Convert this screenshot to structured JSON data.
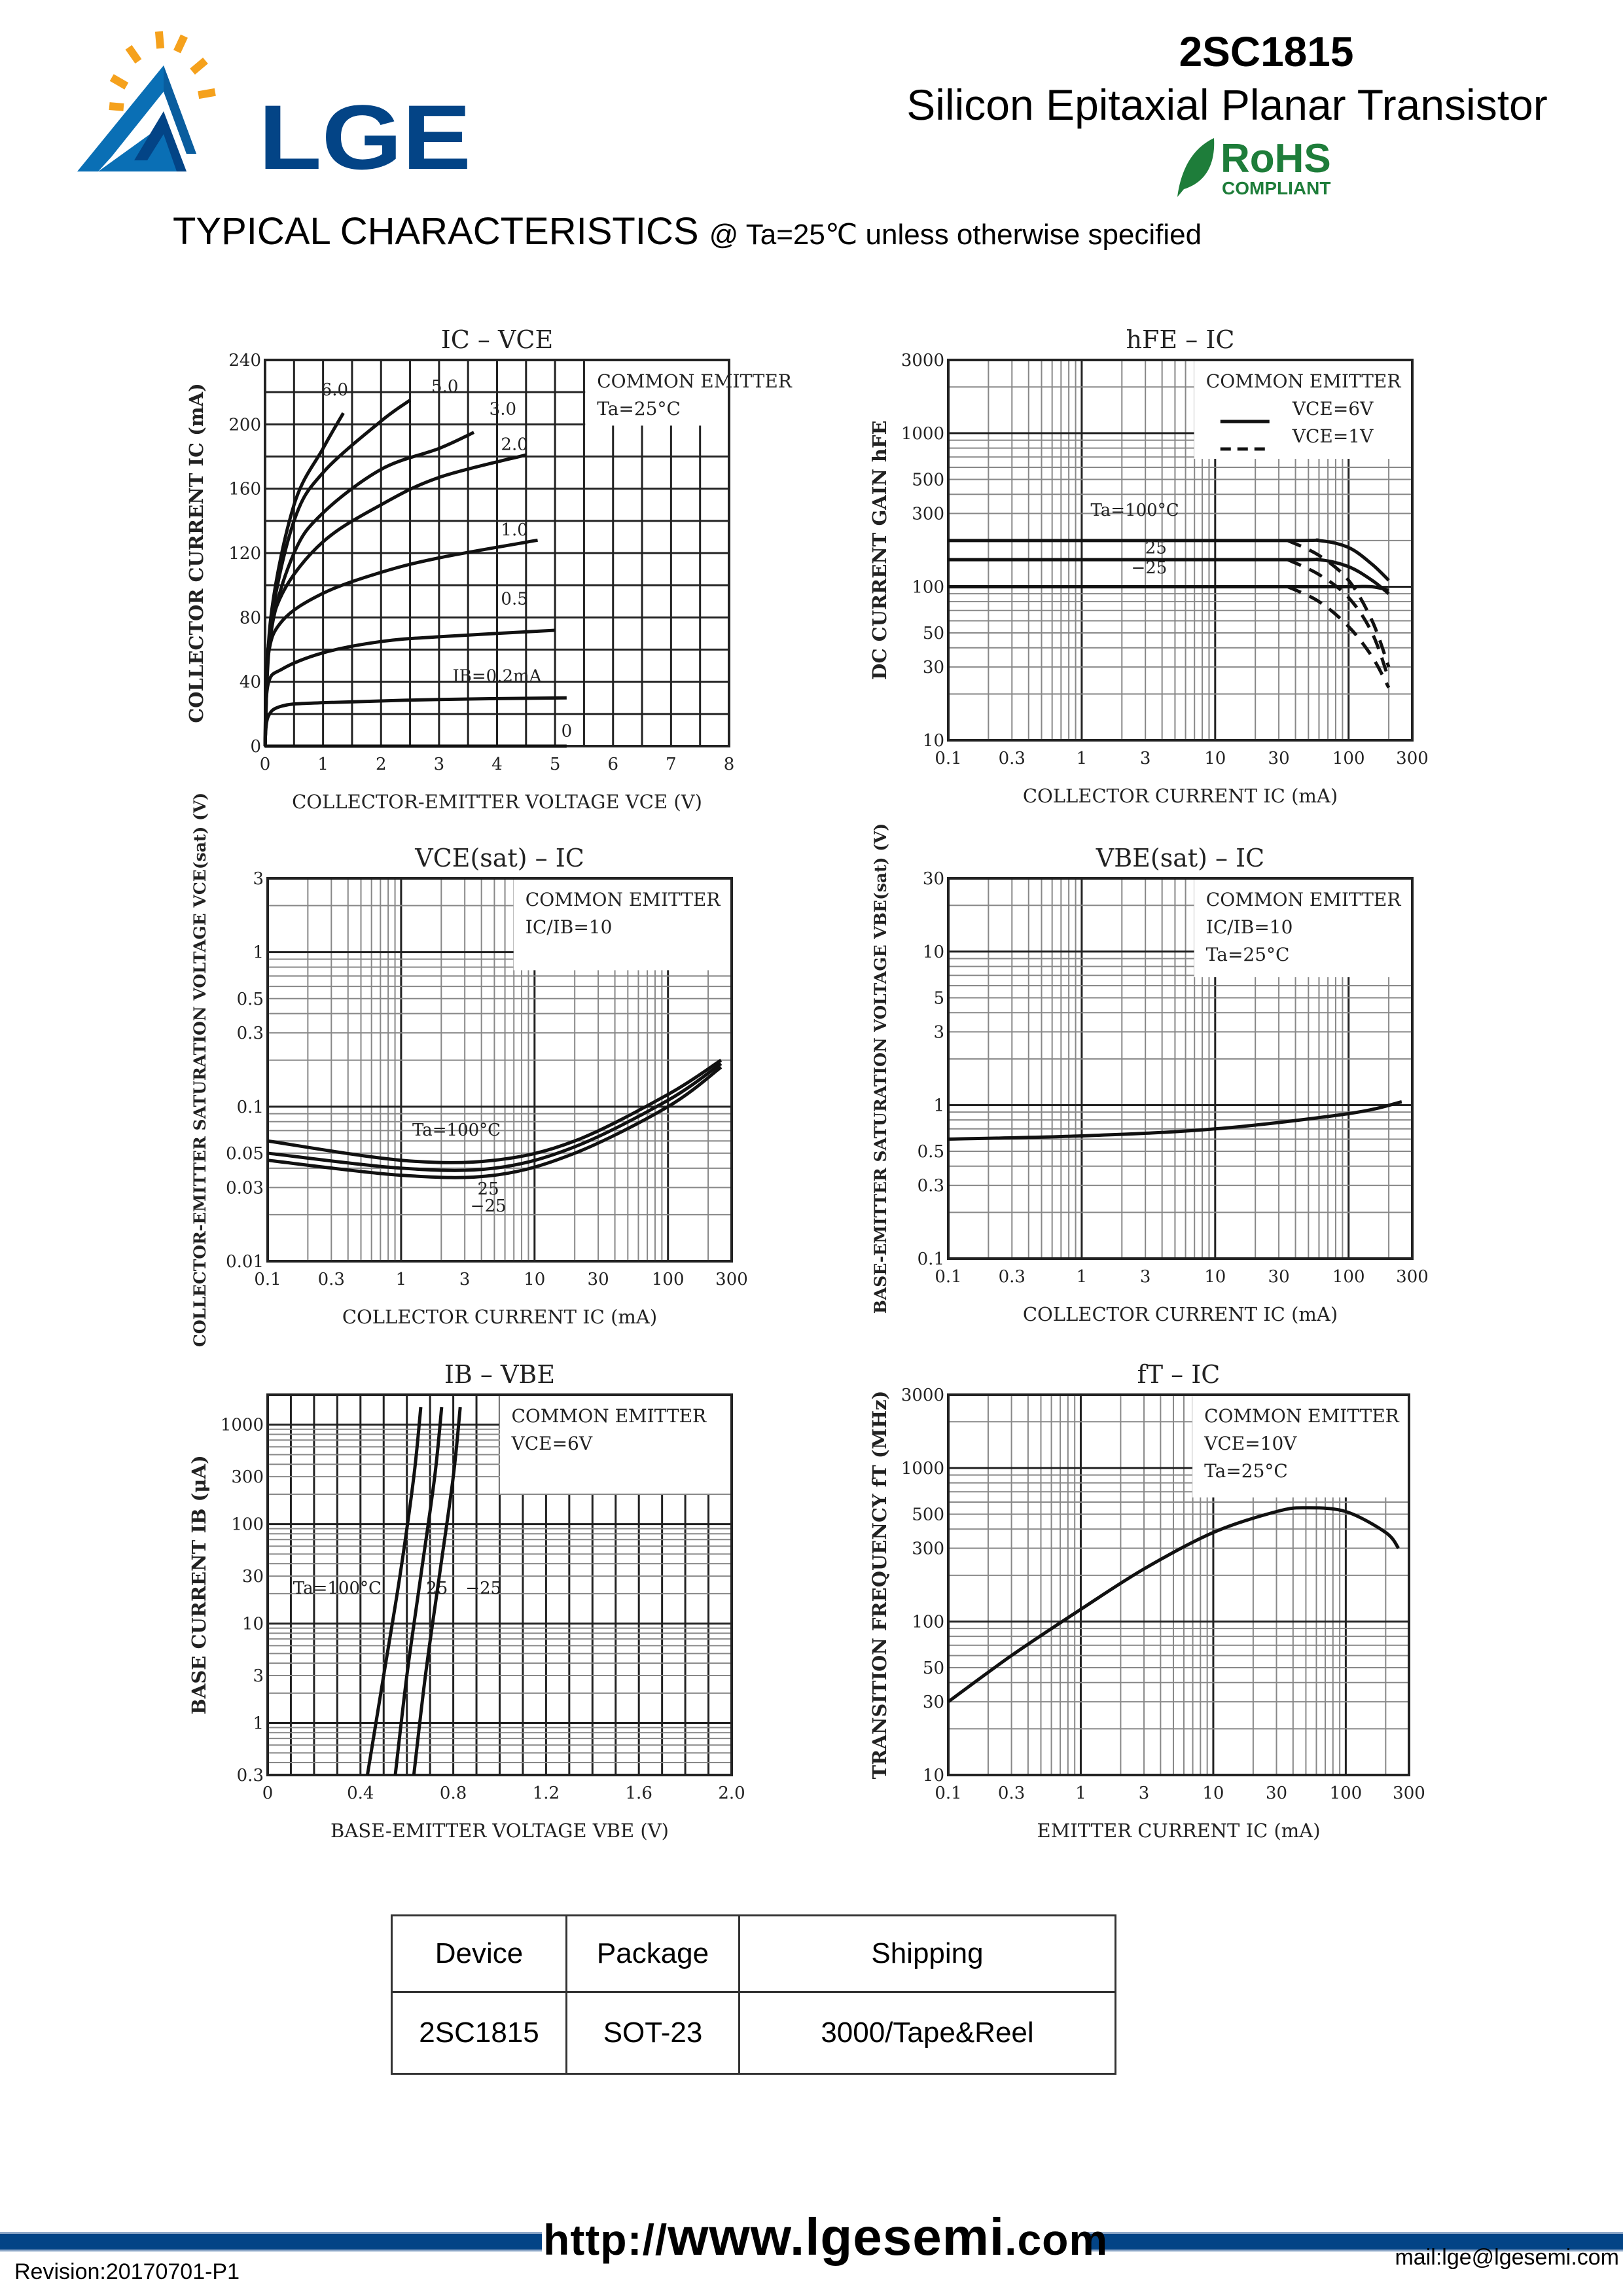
{
  "header": {
    "brand": "LGE",
    "part_number": "2SC1815",
    "subtitle": "Silicon Epitaxial Planar Transistor",
    "rohs": "RoHS",
    "rohs_sub": "COMPLIANT",
    "section_title": "TYPICAL CHARACTERISTICS",
    "section_condition": "@ Ta=25℃ unless otherwise specified"
  },
  "chart_data": [
    {
      "type": "line",
      "title": "IC – VCE",
      "xlabel": "COLLECTOR-EMITTER VOLTAGE   VCE   (V)",
      "ylabel": "COLLECTOR CURRENT   IC   (mA)",
      "xscale": "linear",
      "yscale": "linear",
      "xlim": [
        0,
        8
      ],
      "ylim": [
        0,
        240
      ],
      "xticks": [
        0,
        1,
        2,
        3,
        4,
        5,
        6,
        7,
        8
      ],
      "xtick_labels": [
        "0",
        "1",
        "2",
        "3",
        "4",
        "5",
        "6",
        "7",
        "8"
      ],
      "yticks": [
        0,
        40,
        80,
        120,
        160,
        200,
        240
      ],
      "ytick_labels": [
        "0",
        "40",
        "80",
        "120",
        "160",
        "200",
        "240"
      ],
      "legend": [
        "COMMON EMITTER",
        "Ta=25°C"
      ],
      "legend_placement": "top-right",
      "series": [
        {
          "name": "0",
          "label": "0",
          "style": "solid",
          "x": [
            0,
            5.2
          ],
          "y": [
            0,
            0
          ]
        },
        {
          "name": "IB=0.2mA",
          "label": "IB=0.2mA",
          "style": "solid",
          "x": [
            0,
            0.05,
            0.3,
            1,
            3,
            5.2
          ],
          "y": [
            0,
            18,
            25,
            27,
            29,
            30
          ]
        },
        {
          "name": "0.5",
          "label": "0.5",
          "style": "solid",
          "x": [
            0,
            0.05,
            0.3,
            1,
            2,
            3,
            5
          ],
          "y": [
            0,
            38,
            48,
            58,
            65,
            68,
            72
          ]
        },
        {
          "name": "1.0",
          "label": "1.0",
          "style": "solid",
          "x": [
            0,
            0.05,
            0.3,
            1,
            2,
            3,
            4.7
          ],
          "y": [
            0,
            55,
            78,
            95,
            108,
            117,
            128
          ]
        },
        {
          "name": "2.0",
          "label": "2.0",
          "style": "solid",
          "x": [
            0,
            0.05,
            0.3,
            1,
            2,
            3,
            4.5
          ],
          "y": [
            0,
            60,
            95,
            127,
            150,
            167,
            181
          ]
        },
        {
          "name": "3.0",
          "label": "3.0",
          "style": "solid",
          "x": [
            0,
            0.1,
            0.5,
            1,
            2,
            3,
            3.6
          ],
          "y": [
            0,
            70,
            120,
            145,
            172,
            185,
            195
          ]
        },
        {
          "name": "5.0",
          "label": "5.0",
          "style": "solid",
          "x": [
            0,
            0.1,
            0.5,
            1,
            2,
            2.5
          ],
          "y": [
            0,
            75,
            140,
            170,
            202,
            215
          ]
        },
        {
          "name": "6.0",
          "label": "6.0",
          "style": "solid",
          "x": [
            0,
            0.1,
            0.5,
            1,
            1.35
          ],
          "y": [
            0,
            80,
            150,
            185,
            207
          ]
        }
      ]
    },
    {
      "type": "line",
      "title": "hFE – IC",
      "xlabel": "COLLECTOR CURRENT   IC   (mA)",
      "ylabel": "DC CURRENT GAIN   hFE",
      "xscale": "log",
      "yscale": "log",
      "xlim": [
        0.1,
        300
      ],
      "ylim": [
        10,
        3000
      ],
      "xticks": [
        0.1,
        0.3,
        1,
        3,
        10,
        30,
        100,
        300
      ],
      "xtick_labels": [
        "0.1",
        "0.3",
        "1",
        "3",
        "10",
        "30",
        "100",
        "300"
      ],
      "yticks": [
        10,
        30,
        50,
        100,
        300,
        500,
        1000,
        3000
      ],
      "ytick_labels": [
        "10",
        "30",
        "50",
        "100",
        "300",
        "500",
        "1000",
        "3000"
      ],
      "legend": [
        "COMMON EMITTER",
        "VCE=6V",
        "VCE=1V"
      ],
      "legend_placement": "top-right",
      "series": [
        {
          "name": "Ta=100°C VCE=6V",
          "label": "Ta=100°C",
          "style": "solid",
          "x": [
            0.1,
            30,
            60,
            100,
            150,
            200
          ],
          "y": [
            200,
            200,
            200,
            180,
            140,
            110
          ]
        },
        {
          "name": "Ta=25°C VCE=6V",
          "label": "25",
          "style": "solid",
          "x": [
            0.1,
            30,
            60,
            100,
            150,
            200
          ],
          "y": [
            150,
            150,
            150,
            135,
            110,
            90
          ]
        },
        {
          "name": "Ta=-25°C VCE=6V",
          "label": "−25",
          "style": "solid",
          "x": [
            0.1,
            30,
            100,
            150,
            200
          ],
          "y": [
            100,
            100,
            100,
            100,
            95
          ]
        },
        {
          "name": "Ta=100°C VCE=1V",
          "style": "dashed",
          "x": [
            35,
            60,
            100,
            150,
            200
          ],
          "y": [
            200,
            160,
            110,
            60,
            30
          ]
        },
        {
          "name": "Ta=25°C VCE=1V",
          "style": "dashed",
          "x": [
            35,
            60,
            100,
            150,
            200
          ],
          "y": [
            150,
            120,
            85,
            50,
            25
          ]
        },
        {
          "name": "Ta=-25°C VCE=1V",
          "style": "dashed",
          "x": [
            35,
            60,
            100,
            150,
            200
          ],
          "y": [
            100,
            80,
            55,
            35,
            22
          ]
        }
      ]
    },
    {
      "type": "line",
      "title": "VCE(sat) – IC",
      "xlabel": "COLLECTOR CURRENT   IC   (mA)",
      "ylabel": "COLLECTOR-EMITTER SATURATION VOLTAGE   VCE(sat)   (V)",
      "xscale": "log",
      "yscale": "log",
      "xlim": [
        0.1,
        300
      ],
      "ylim": [
        0.01,
        3
      ],
      "xticks": [
        0.1,
        0.3,
        1,
        3,
        10,
        30,
        100,
        300
      ],
      "xtick_labels": [
        "0.1",
        "0.3",
        "1",
        "3",
        "10",
        "30",
        "100",
        "300"
      ],
      "yticks": [
        0.01,
        0.03,
        0.05,
        0.1,
        0.3,
        0.5,
        1,
        3
      ],
      "ytick_labels": [
        "0.01",
        "0.03",
        "0.05",
        "0.1",
        "0.3",
        "0.5",
        "1",
        "3"
      ],
      "legend": [
        "COMMON EMITTER",
        "IC/IB=10"
      ],
      "legend_placement": "top-right",
      "series": [
        {
          "name": "Ta=100°C",
          "label": "Ta=100°C",
          "style": "solid",
          "x": [
            0.1,
            1,
            5,
            20,
            100,
            250
          ],
          "y": [
            0.06,
            0.045,
            0.045,
            0.06,
            0.12,
            0.2
          ]
        },
        {
          "name": "Ta=25°C",
          "label": "25",
          "style": "solid",
          "x": [
            0.1,
            1,
            5,
            20,
            100,
            250
          ],
          "y": [
            0.05,
            0.04,
            0.04,
            0.055,
            0.11,
            0.19
          ]
        },
        {
          "name": "Ta=-25°C",
          "label": "−25",
          "style": "solid",
          "x": [
            0.1,
            1,
            5,
            20,
            100,
            250
          ],
          "y": [
            0.045,
            0.036,
            0.036,
            0.05,
            0.1,
            0.18
          ]
        }
      ]
    },
    {
      "type": "line",
      "title": "VBE(sat) – IC",
      "xlabel": "COLLECTOR CURRENT   IC   (mA)",
      "ylabel": "BASE-EMITTER SATURATION VOLTAGE   VBE(sat)   (V)",
      "xscale": "log",
      "yscale": "log",
      "xlim": [
        0.1,
        300
      ],
      "ylim": [
        0.1,
        30
      ],
      "xticks": [
        0.1,
        0.3,
        1,
        3,
        10,
        30,
        100,
        300
      ],
      "xtick_labels": [
        "0.1",
        "0.3",
        "1",
        "3",
        "10",
        "30",
        "100",
        "300"
      ],
      "yticks": [
        0.1,
        0.3,
        0.5,
        1,
        3,
        5,
        10,
        30
      ],
      "ytick_labels": [
        "0.1",
        "0.3",
        "0.5",
        "1",
        "3",
        "5",
        "10",
        "30"
      ],
      "legend": [
        "COMMON EMITTER",
        "IC/IB=10",
        "Ta=25°C"
      ],
      "legend_placement": "top-right",
      "series": [
        {
          "name": "VBE(sat)",
          "style": "solid",
          "x": [
            0.1,
            1,
            10,
            100,
            250
          ],
          "y": [
            0.6,
            0.63,
            0.7,
            0.88,
            1.05
          ]
        }
      ]
    },
    {
      "type": "line",
      "title": "IB – VBE",
      "xlabel": "BASE-EMITTER VOLTAGE   VBE   (V)",
      "ylabel": "BASE CURRENT   IB   (μA)",
      "xscale": "linear",
      "yscale": "log",
      "xlim": [
        0,
        2.0
      ],
      "ylim": [
        0.3,
        2000
      ],
      "xticks": [
        0,
        0.4,
        0.8,
        1.2,
        1.6,
        2.0
      ],
      "xtick_labels": [
        "0",
        "0.4",
        "0.8",
        "1.2",
        "1.6",
        "2.0"
      ],
      "yticks": [
        0.3,
        1,
        3,
        10,
        30,
        100,
        300,
        1000
      ],
      "ytick_labels": [
        "0.3",
        "1",
        "3",
        "10",
        "30",
        "100",
        "300",
        "1000"
      ],
      "legend": [
        "COMMON EMITTER",
        "VCE=6V"
      ],
      "legend_placement": "top-right",
      "series": [
        {
          "name": "Ta=100°C",
          "label": "Ta=100°C",
          "style": "solid",
          "x": [
            0.43,
            0.5,
            0.57,
            0.63,
            0.66
          ],
          "y": [
            0.3,
            3,
            30,
            300,
            1500
          ]
        },
        {
          "name": "Ta=25°C",
          "label": "25",
          "style": "solid",
          "x": [
            0.55,
            0.6,
            0.66,
            0.72,
            0.75
          ],
          "y": [
            0.3,
            3,
            30,
            300,
            1500
          ]
        },
        {
          "name": "Ta=-25°C",
          "label": "−25",
          "style": "solid",
          "x": [
            0.63,
            0.68,
            0.74,
            0.8,
            0.83
          ],
          "y": [
            0.3,
            3,
            30,
            300,
            1500
          ]
        }
      ]
    },
    {
      "type": "line",
      "title": "fT – IC",
      "xlabel": "EMITTER CURRENT   IC   (mA)",
      "ylabel": "TRANSITION FREQUENCY   fT   (MHz)",
      "xscale": "log",
      "yscale": "log",
      "xlim": [
        0.1,
        300
      ],
      "ylim": [
        10,
        3000
      ],
      "xticks": [
        0.1,
        0.3,
        1,
        3,
        10,
        30,
        100,
        300
      ],
      "xtick_labels": [
        "0.1",
        "0.3",
        "1",
        "3",
        "10",
        "30",
        "100",
        "300"
      ],
      "yticks": [
        10,
        30,
        50,
        100,
        300,
        500,
        1000,
        3000
      ],
      "ytick_labels": [
        "10",
        "30",
        "50",
        "100",
        "300",
        "500",
        "1000",
        "3000"
      ],
      "legend": [
        "COMMON EMITTER",
        "VCE=10V",
        "Ta=25°C"
      ],
      "legend_placement": "top-right",
      "series": [
        {
          "name": "fT",
          "style": "solid",
          "x": [
            0.1,
            0.3,
            1,
            3,
            10,
            30,
            50,
            100,
            200,
            250
          ],
          "y": [
            30,
            60,
            120,
            220,
            380,
            520,
            550,
            520,
            380,
            300
          ]
        }
      ]
    }
  ],
  "table": {
    "headers": [
      "Device",
      "Package",
      "Shipping"
    ],
    "rows": [
      [
        "2SC1815",
        "SOT-23",
        "3000/Tape&Reel"
      ]
    ]
  },
  "footer": {
    "url_prefix": "http://",
    "url_main": "www.lgesemi",
    "url_suffix": ".com",
    "revision": "Revision:20170701-P1",
    "mail": "mail:lge@lgesemi.com"
  },
  "colors": {
    "brand_blue": "#034486",
    "logo_orange": "#f5a11c",
    "rohs_green": "#1e7d3a"
  }
}
